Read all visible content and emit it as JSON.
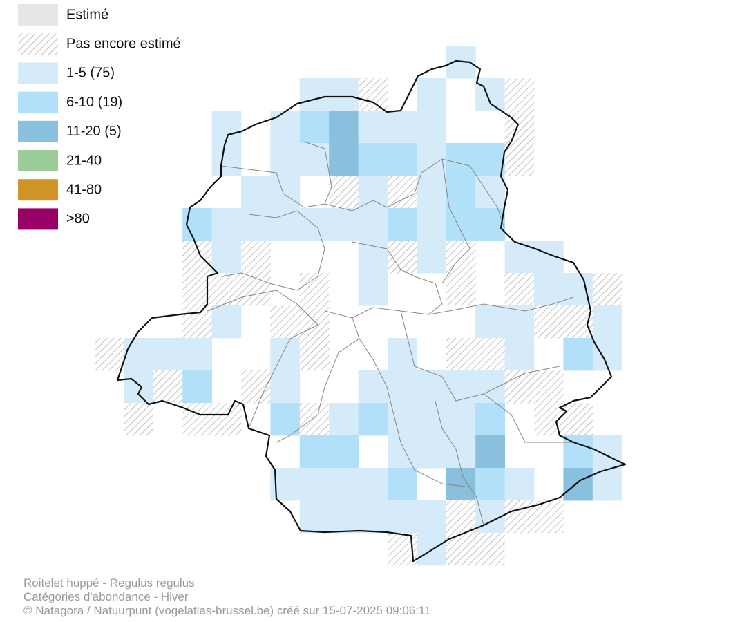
{
  "legend": [
    {
      "label": "Estimé",
      "color": "#e6e6e6"
    },
    {
      "label": "Pas encore estimé",
      "color": "#c4c4c4",
      "hatched": true
    },
    {
      "label": "1-5 (75)",
      "color": "#d6ebf9"
    },
    {
      "label": "6-10 (19)",
      "color": "#b1e0f8"
    },
    {
      "label": "11-20 (5)",
      "color": "#88c0dd"
    },
    {
      "label": "21-40",
      "color": "#9ccc98"
    },
    {
      "label": "41-80",
      "color": "#d09427"
    },
    {
      "label": ">80",
      "color": "#990066"
    }
  ],
  "footer": [
    "Roitelet huppé - Regulus regulus",
    "Catégories d'abondance - Hiver",
    "© Natagora / Natuurpunt (vogelatlas-brussel.be) créé sur 15-07-2025 09:06:11"
  ]
}
